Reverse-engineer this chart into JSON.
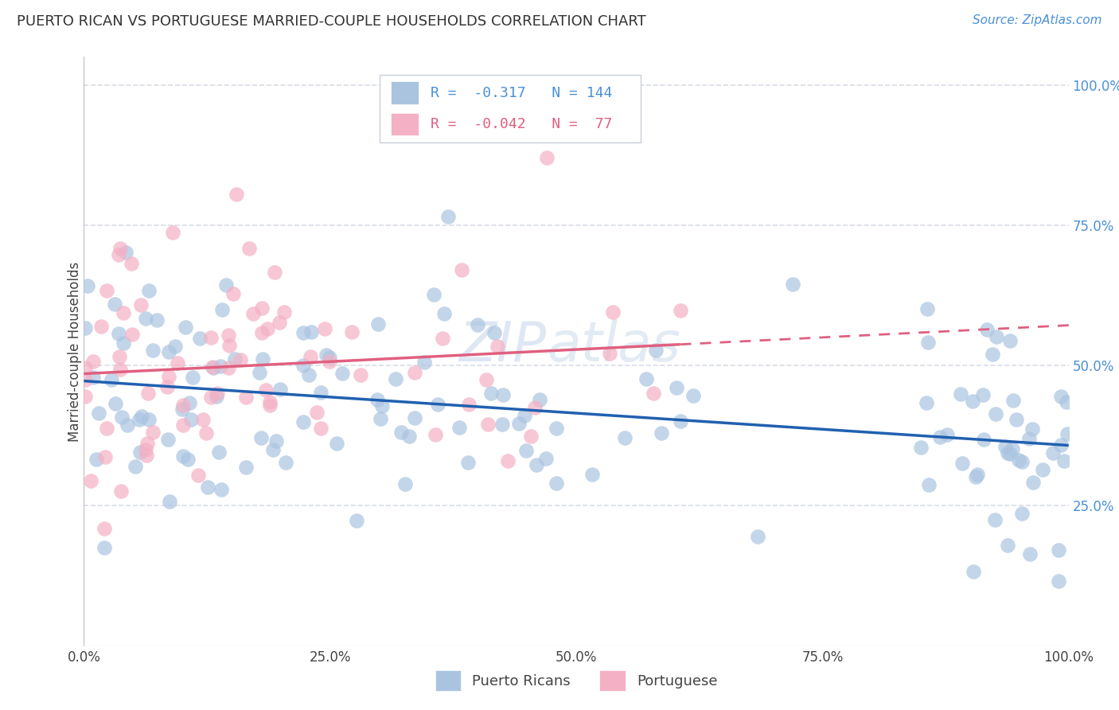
{
  "title": "PUERTO RICAN VS PORTUGUESE MARRIED-COUPLE HOUSEHOLDS CORRELATION CHART",
  "source": "Source: ZipAtlas.com",
  "ylabel": "Married-couple Households",
  "pr_color": "#aac4e0",
  "pt_color": "#f4b0c4",
  "pr_line_color": "#2060b0",
  "pt_line_color": "#e06080",
  "watermark_zip": "ZIP",
  "watermark_atlas": "atlas",
  "legend_r_pr": "-0.317",
  "legend_n_pr": "144",
  "legend_r_pt": "-0.042",
  "legend_n_pt": "77",
  "bg_color": "#ffffff",
  "grid_color": "#d8dde8",
  "tick_color_blue": "#4a90d9",
  "tick_color_dark": "#444444",
  "title_color": "#333333",
  "title_fontsize": 13,
  "source_fontsize": 11,
  "ylabel_fontsize": 12,
  "tick_fontsize": 12,
  "legend_fontsize": 13
}
